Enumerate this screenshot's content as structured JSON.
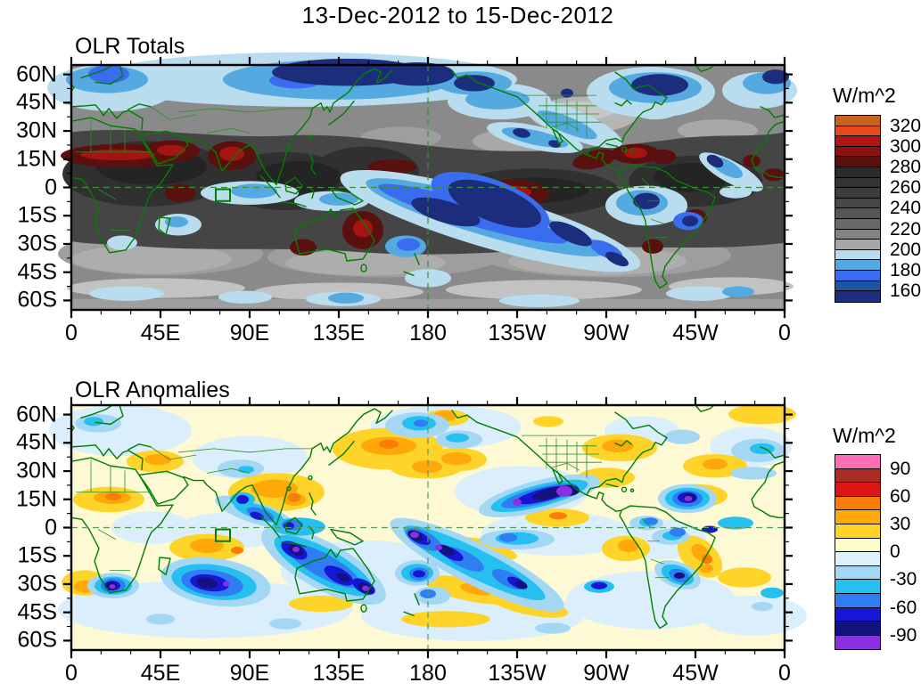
{
  "title": "13-Dec-2012 to 15-Dec-2012",
  "panels": [
    {
      "title": "OLR Totals",
      "y_tick_labels": [
        "60N",
        "45N",
        "30N",
        "15N",
        "0",
        "15S",
        "30S",
        "45S",
        "60S"
      ],
      "x_tick_labels": [
        "0",
        "45E",
        "90E",
        "135E",
        "180",
        "135W",
        "90W",
        "45W",
        "0"
      ],
      "colorbar": {
        "title": "W/m^2",
        "labels": [
          "320",
          "300",
          "280",
          "260",
          "240",
          "220",
          "200",
          "180",
          "160"
        ],
        "colors": [
          "#c8641e",
          "#e64a1b",
          "#b21511",
          "#8c1210",
          "#5a100e",
          "#2b2b2b",
          "#333333",
          "#3d3d3d",
          "#484848",
          "#565656",
          "#696969",
          "#838383",
          "#a7a7a7",
          "#b9ddee",
          "#54aae0",
          "#3a6cf0",
          "#1c55a0",
          "#1d2d7e"
        ]
      }
    },
    {
      "title": "OLR Anomalies",
      "y_tick_labels": [
        "60N",
        "45N",
        "30N",
        "15N",
        "0",
        "15S",
        "30S",
        "45S",
        "60S"
      ],
      "x_tick_labels": [
        "0",
        "45E",
        "90E",
        "135E",
        "180",
        "135W",
        "90W",
        "45W",
        "0"
      ],
      "colorbar": {
        "title": "W/m^2",
        "labels": [
          "90",
          "60",
          "30",
          "0",
          "-30",
          "-60",
          "-90"
        ],
        "colors": [
          "#ff6eb4",
          "#aa2a24",
          "#dc1415",
          "#f87d09",
          "#ffa80a",
          "#ffd428",
          "#fdfbc8",
          "#ddf1fb",
          "#a4d7f4",
          "#25c0f0",
          "#2f7df2",
          "#1616d4",
          "#13137f",
          "#8b30e0"
        ]
      }
    }
  ],
  "chart_data": [
    {
      "type": "heatmap",
      "subtype": "filled_contour_world_map",
      "title": "OLR Totals",
      "units": "W/m^2",
      "x_ticks": [
        "0",
        "45E",
        "90E",
        "135E",
        "180",
        "135W",
        "90W",
        "45W",
        "0"
      ],
      "y_ticks": [
        "60N",
        "45N",
        "30N",
        "15N",
        "0",
        "15S",
        "30S",
        "45S",
        "60S"
      ],
      "lon_range_deg_east": [
        0,
        360
      ],
      "lat_range": [
        -65,
        65
      ],
      "contour_levels": {
        "min": 160,
        "max": 320,
        "step": 10
      },
      "colorbar_tick_values": [
        320,
        300,
        280,
        260,
        240,
        220,
        200,
        180,
        160
      ],
      "palette_high_to_low": [
        "#c8641e",
        "#e64a1b",
        "#b21511",
        "#8c1210",
        "#5a100e",
        "#2b2b2b",
        "#333333",
        "#3d3d3d",
        "#484848",
        "#565656",
        "#696969",
        "#838383",
        "#a7a7a7",
        "#b9ddee",
        "#54aae0",
        "#3a6cf0",
        "#1c55a0",
        "#1d2d7e"
      ],
      "legend_position": "right",
      "coastline_color": "#007f00",
      "reference_lines": {
        "equator_dashed": true,
        "dateline_dashed": true,
        "green_box_lon_lat_bounds": [
          73,
          -7,
          80,
          -1
        ]
      },
      "notable_features": [
        "Low OLR (<180, blue/navy) band along 55-65N from Scandinavia across Siberia to the Bering Sea, and over Hudson Bay and the far North Atlantic",
        "Blue SPCZ convective band arcing southeast from Indonesia (~130E,0) across the dateline toward 140W,40S with navy cores",
        "Deep convection (blue/navy) over the western Amazon, southeastern Brazil, and the tropical Atlantic near 15N,45W",
        "Convective streak northwest of Mexico near 20N,135W; light-blue streak across the central United States",
        "High OLR (>280, dark red) over the Sahel, Arabia, India, near 55E on the equator, 150-175E near 10N, the eastern equatorial Pacific, Central America and the Caribbean, northeastern and southwestern Australia, and interior Brazil",
        "Dark gray (240-280) across most of the tropics; light gray (200-220) bands along 30-60S and subtropical oceans"
      ]
    },
    {
      "type": "heatmap",
      "subtype": "filled_contour_world_map",
      "title": "OLR Anomalies",
      "units": "W/m^2",
      "x_ticks": [
        "0",
        "45E",
        "90E",
        "135E",
        "180",
        "135W",
        "90W",
        "45W",
        "0"
      ],
      "y_ticks": [
        "60N",
        "45N",
        "30N",
        "15N",
        "0",
        "15S",
        "30S",
        "45S",
        "60S"
      ],
      "lon_range_deg_east": [
        0,
        360
      ],
      "lat_range": [
        -65,
        65
      ],
      "contour_levels": {
        "min": -90,
        "max": 90,
        "step": 15
      },
      "colorbar_tick_values": [
        90,
        60,
        30,
        0,
        -30,
        -60,
        -90
      ],
      "palette_high_to_low": [
        "#ff6eb4",
        "#aa2a24",
        "#dc1415",
        "#f87d09",
        "#ffa80a",
        "#ffd428",
        "#fdfbc8",
        "#ddf1fb",
        "#a4d7f4",
        "#25c0f0",
        "#2f7df2",
        "#1616d4",
        "#13137f",
        "#8b30e0"
      ],
      "legend_position": "right",
      "coastline_color": "#007f00",
      "reference_lines": {
        "equator_dashed": true,
        "dateline_dashed": true,
        "green_box_lon_lat_bounds": [
          73,
          -7,
          80,
          -1
        ]
      },
      "notable_features": [
        "Strong negative anomalies (<-60, navy with purple cores) stretching WSW from the Mexican coast near 20N,110W toward 12N,140W",
        "Negative SPCZ band from ~175E,3S to 125W,38S with purple beads; negative centers over the south Indian Ocean (70E,30S), South Africa (20E,31S), Indonesia to southeast Australia, the Tasman Sea, and the tropical Atlantic near 16N,48W",
        "Negative anomalies over the Bay of Bengal and southern Brazil",
        "Positive anomalies (>+30, gold/orange) over the Sahel, Turkey/Caspian, the west-central Indian Ocean, Southeast Asia and the Philippines, the western North Pacific 30-50N, the Gulf of Alaska, eastern North America, the subtropical Atlantic, coastal Brazil, near Peru, and the South Pacific 28-42S",
        "Weak anomalies (-15 to +15, pale yellow and pale blue) over most remaining areas"
      ]
    }
  ]
}
